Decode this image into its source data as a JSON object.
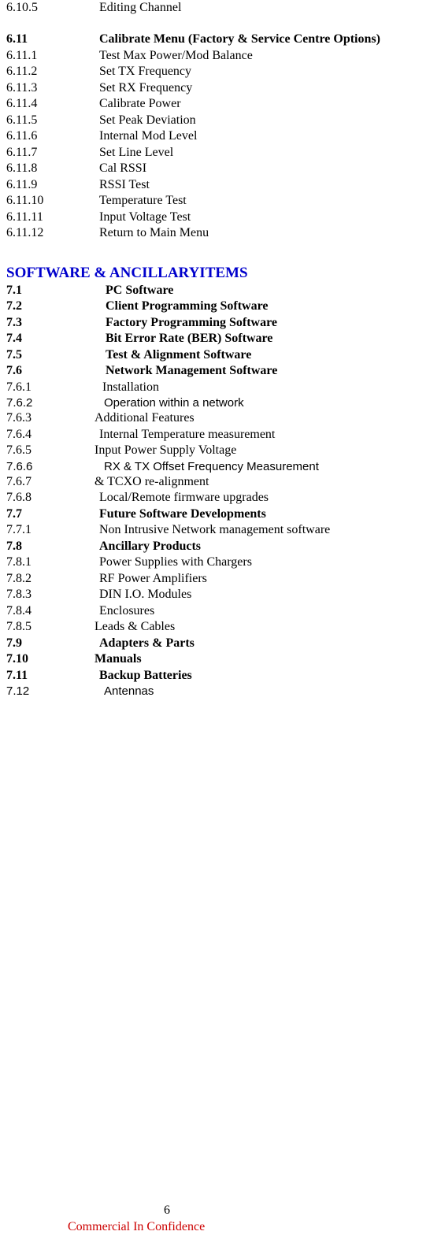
{
  "col_num_width": 118,
  "rows_block1": [
    {
      "num": "6.10.5",
      "txt": "Editing Channel",
      "bold": false,
      "sans": false
    }
  ],
  "rows_block2": [
    {
      "num": "6.11",
      "txt": "Calibrate Menu (Factory & Service Centre Options)",
      "bold": true,
      "sans": false
    },
    {
      "num": "6.11.1",
      "txt": "Test Max Power/Mod Balance",
      "bold": false,
      "sans": false
    },
    {
      "num": "6.11.2",
      "txt": "Set TX Frequency",
      "bold": false,
      "sans": false
    },
    {
      "num": "6.11.3",
      "txt": "Set RX Frequency",
      "bold": false,
      "sans": false
    },
    {
      "num": "6.11.4",
      "txt": "Calibrate Power",
      "bold": false,
      "sans": false
    },
    {
      "num": "6.11.5",
      "txt": "Set Peak Deviation",
      "bold": false,
      "sans": false
    },
    {
      "num": "6.11.6",
      "txt": "Internal Mod Level",
      "bold": false,
      "sans": false
    },
    {
      "num": "6.11.7",
      "txt": "Set Line Level",
      "bold": false,
      "sans": false
    },
    {
      "num": "6.11.8",
      "txt": "Cal RSSI",
      "bold": false,
      "sans": false
    },
    {
      "num": "6.11.9",
      "txt": "RSSI Test",
      "bold": false,
      "sans": false
    },
    {
      "num": "6.11.10",
      "txt": "Temperature Test",
      "bold": false,
      "sans": false
    },
    {
      "num": "6.11.11",
      "txt": "Input Voltage Test",
      "bold": false,
      "sans": false
    },
    {
      "num": "6.11.12",
      "txt": "Return to Main Menu",
      "bold": false,
      "sans": false
    }
  ],
  "section_title": "SOFTWARE & ANCILLARYITEMS",
  "rows_block3": [
    {
      "num": "7.1",
      "txt": "PC Software",
      "bold": true,
      "sans": false,
      "num_w": 126
    },
    {
      "num": "7.2",
      "txt": "Client  Programming Software",
      "bold": true,
      "sans": false,
      "num_w": 126
    },
    {
      "num": "7.3",
      "txt": "Factory Programming Software",
      "bold": true,
      "sans": false,
      "num_w": 126
    },
    {
      "num": "7.4",
      "txt": "Bit Error Rate (BER) Software",
      "bold": true,
      "sans": false,
      "num_w": 126
    },
    {
      "num": "7.5",
      "txt": "Test & Alignment Software",
      "bold": true,
      "sans": false,
      "num_w": 126
    },
    {
      "num": "7.6",
      "txt": "Network Management Software",
      "bold": true,
      "sans": false,
      "num_w": 126
    },
    {
      "num": "7.6.1",
      "txt": "Installation",
      "bold": false,
      "sans": false,
      "num_w": 122
    },
    {
      "num": "7.6.2",
      "txt": "Operation within a network",
      "bold": false,
      "sans": true,
      "num_w": 124
    },
    {
      "num": "7.6.3",
      "txt": "Additional Features",
      "bold": false,
      "sans": false,
      "num_w": 112
    },
    {
      "num": "7.6.4",
      "txt": "Internal Temperature measurement",
      "bold": false,
      "sans": false,
      "num_w": 118
    },
    {
      "num": "7.6.5",
      "txt": "Input Power Supply Voltage",
      "bold": false,
      "sans": false,
      "num_w": 112
    },
    {
      "num": "7.6.6",
      "txt": "RX & TX Offset Frequency Measurement",
      "bold": false,
      "sans": true,
      "num_w": 124
    },
    {
      "num": "7.6.7",
      "txt": "& TCXO re-alignment",
      "bold": false,
      "sans": false,
      "num_w": 112
    },
    {
      "num": "7.6.8",
      "txt": "Local/Remote firmware upgrades",
      "bold": false,
      "sans": false,
      "num_w": 118
    },
    {
      "num": "7.7",
      "txt": "Future Software Developments",
      "bold": true,
      "sans": false,
      "num_w": 118
    },
    {
      "num": "7.7.1",
      "txt": "Non Intrusive Network management software",
      "bold": false,
      "sans": false,
      "num_w": 118
    },
    {
      "num": "7.8",
      "txt": "Ancillary Products",
      "bold": true,
      "sans": false,
      "num_w": 118
    },
    {
      "num": "7.8.1",
      "txt": "Power Supplies with Chargers",
      "bold": false,
      "sans": false,
      "num_w": 118
    },
    {
      "num": "7.8.2",
      "txt": "RF Power Amplifiers",
      "bold": false,
      "sans": false,
      "num_w": 118
    },
    {
      "num": "7.8.3",
      "txt": "DIN I.O. Modules",
      "bold": false,
      "sans": false,
      "num_w": 118
    },
    {
      "num": "7.8.4",
      "txt": "Enclosures",
      "bold": false,
      "sans": false,
      "num_w": 118
    },
    {
      "num": "7.8.5",
      "txt": "Leads & Cables",
      "bold": false,
      "sans": false,
      "num_w": 112
    },
    {
      "num": "7.9",
      "txt": "Adapters & Parts",
      "bold": true,
      "sans": false,
      "num_w": 118
    },
    {
      "num": "7.10",
      "txt": "Manuals",
      "bold": true,
      "sans": false,
      "num_w": 112
    },
    {
      "num": "7.11",
      "txt": "Backup Batteries",
      "bold": true,
      "sans": false,
      "num_w": 118
    },
    {
      "num": "7.12",
      "txt": "Antennas",
      "bold": false,
      "sans": true,
      "num_w": 124
    }
  ],
  "footer": {
    "page_number": "6",
    "confidential": "Commercial In Confidence"
  }
}
